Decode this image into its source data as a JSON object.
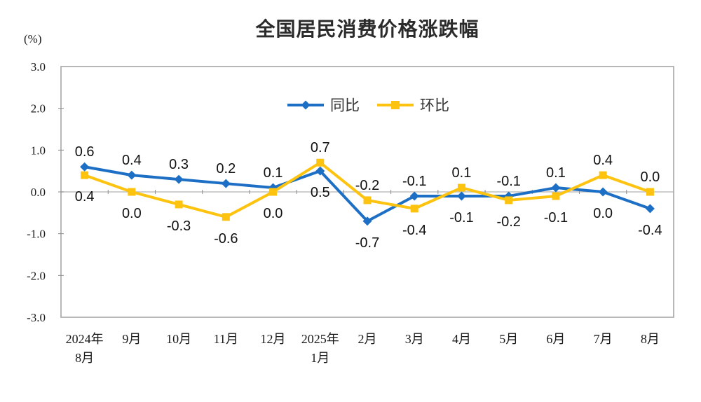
{
  "title": "全国居民消费价格涨跌幅",
  "y_axis_unit": "(%)",
  "chart_data": {
    "type": "line",
    "title": "全国居民消费价格涨跌幅",
    "ylabel": "(%)",
    "ylim": [
      -3.0,
      3.0
    ],
    "yticks": [
      3.0,
      2.0,
      1.0,
      0.0,
      -1.0,
      -2.0,
      -3.0
    ],
    "grid": "zero-line-only",
    "legend_position": "top-center",
    "categories": [
      [
        "2024年",
        "8月"
      ],
      [
        "9月"
      ],
      [
        "10月"
      ],
      [
        "11月"
      ],
      [
        "12月"
      ],
      [
        "2025年",
        "1月"
      ],
      [
        "2月"
      ],
      [
        "3月"
      ],
      [
        "4月"
      ],
      [
        "5月"
      ],
      [
        "6月"
      ],
      [
        "7月"
      ],
      [
        "8月"
      ]
    ],
    "series": [
      {
        "name": "同比",
        "color": "#1c6fc4",
        "marker": "diamond",
        "values": [
          0.6,
          0.4,
          0.3,
          0.2,
          0.1,
          0.5,
          -0.7,
          -0.1,
          -0.1,
          -0.1,
          0.1,
          0.0,
          -0.4
        ],
        "label_side": [
          "above",
          "above",
          "above",
          "above",
          "above",
          "below",
          "below",
          "above",
          "below",
          "above",
          "above",
          "below",
          "below"
        ]
      },
      {
        "name": "环比",
        "color": "#fdc30e",
        "marker": "square",
        "values": [
          0.4,
          0.0,
          -0.3,
          -0.6,
          0.0,
          0.7,
          -0.2,
          -0.4,
          0.1,
          -0.2,
          -0.1,
          0.4,
          0.0
        ],
        "label_side": [
          "below",
          "below",
          "below",
          "below",
          "below",
          "above",
          "above",
          "below",
          "above",
          "below",
          "below",
          "above",
          "above"
        ]
      }
    ],
    "axis_color": "#a6a6a6",
    "zero_line_color": "#bfbfbf",
    "tick_color": "#8c8c8c",
    "label_color": "#1a1a1a"
  }
}
